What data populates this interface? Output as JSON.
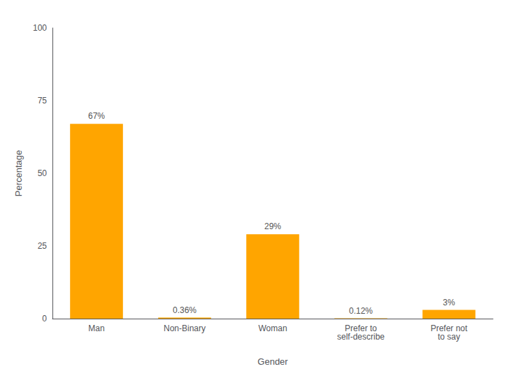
{
  "chart_data": {
    "type": "bar",
    "categories": [
      "Man",
      "Non-Binary",
      "Woman",
      "Prefer to\nself-describe",
      "Prefer not\nto say"
    ],
    "values": [
      67,
      0.36,
      29,
      0.12,
      3
    ],
    "value_labels": [
      "67%",
      "0.36%",
      "29%",
      "0.12%",
      "3%"
    ],
    "data_labels": true,
    "color": "#FFA500",
    "xlabel": "Gender",
    "ylabel": "Percentage",
    "ylim": [
      0,
      100
    ],
    "yticks": [
      0,
      25,
      50,
      75,
      100
    ],
    "grid": false
  }
}
